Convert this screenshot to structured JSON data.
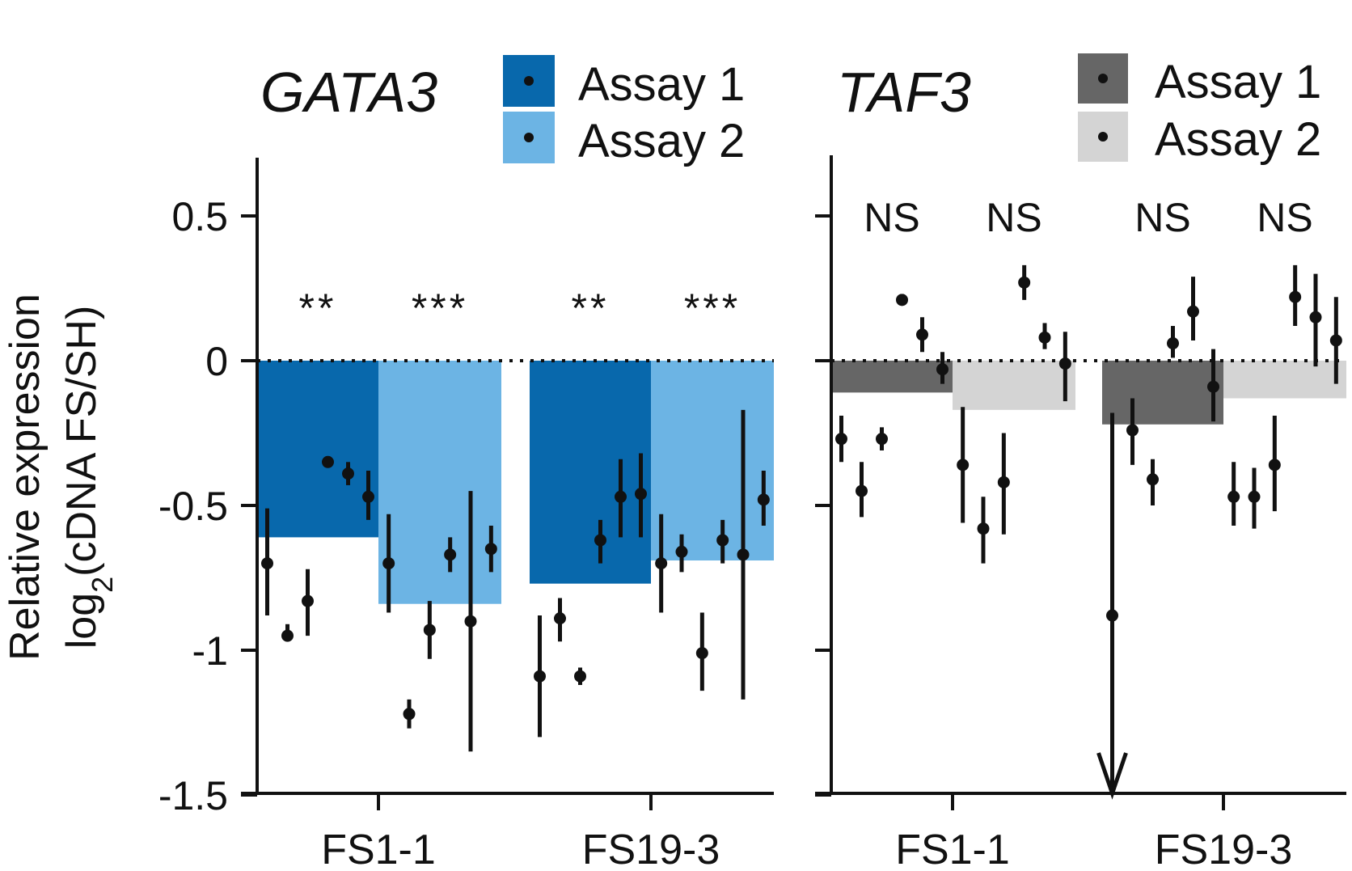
{
  "chart_data": [
    {
      "type": "bar",
      "title": "GATA3",
      "ylabel": "Relative expression",
      "ylabel_line2": "log2(cDNA FS/SH)",
      "ylim": [
        -1.5,
        0.7
      ],
      "yticks": [
        0.5,
        0,
        -0.5,
        -1,
        -1.5
      ],
      "ytick_labels": [
        "0.5",
        "0",
        "-0.5",
        "-1",
        "-1.5"
      ],
      "categories": [
        "FS1-1",
        "FS19-3"
      ],
      "legend": [
        {
          "name": "Assay 1",
          "color": "#0868ac"
        },
        {
          "name": "Assay 2",
          "color": "#6cb4e4"
        }
      ],
      "series": [
        {
          "name": "Assay 1",
          "color": "#0868ac",
          "values": [
            -0.61,
            -0.77
          ]
        },
        {
          "name": "Assay 2",
          "color": "#6cb4e4",
          "values": [
            -0.84,
            -0.69
          ]
        }
      ],
      "significance": [
        [
          "**",
          "***"
        ],
        [
          "**",
          "***"
        ]
      ],
      "points": [
        [
          [
            {
              "y": -0.7,
              "lo": -0.88,
              "hi": -0.51
            },
            {
              "y": -0.95,
              "lo": -0.97,
              "hi": -0.91
            },
            {
              "y": -0.83,
              "lo": -0.95,
              "hi": -0.72
            },
            {
              "y": -0.35,
              "lo": -0.36,
              "hi": -0.33
            },
            {
              "y": -0.39,
              "lo": -0.43,
              "hi": -0.35
            },
            {
              "y": -0.47,
              "lo": -0.55,
              "hi": -0.38
            }
          ],
          [
            {
              "y": -0.7,
              "lo": -0.87,
              "hi": -0.53
            },
            {
              "y": -1.22,
              "lo": -1.27,
              "hi": -1.17
            },
            {
              "y": -0.93,
              "lo": -1.03,
              "hi": -0.83
            },
            {
              "y": -0.67,
              "lo": -0.73,
              "hi": -0.61
            },
            {
              "y": -0.9,
              "lo": -1.35,
              "hi": -0.45
            },
            {
              "y": -0.65,
              "lo": -0.73,
              "hi": -0.57
            }
          ]
        ],
        [
          [
            {
              "y": -1.09,
              "lo": -1.3,
              "hi": -0.88
            },
            {
              "y": -0.89,
              "lo": -0.97,
              "hi": -0.82
            },
            {
              "y": -1.09,
              "lo": -1.12,
              "hi": -1.06
            },
            {
              "y": -0.62,
              "lo": -0.7,
              "hi": -0.55
            },
            {
              "y": -0.47,
              "lo": -0.61,
              "hi": -0.34
            },
            {
              "y": -0.46,
              "lo": -0.61,
              "hi": -0.32
            }
          ],
          [
            {
              "y": -0.7,
              "lo": -0.87,
              "hi": -0.53
            },
            {
              "y": -0.66,
              "lo": -0.73,
              "hi": -0.6
            },
            {
              "y": -1.01,
              "lo": -1.14,
              "hi": -0.87
            },
            {
              "y": -0.62,
              "lo": -0.7,
              "hi": -0.55
            },
            {
              "y": -0.67,
              "lo": -1.17,
              "hi": -0.17
            },
            {
              "y": -0.48,
              "lo": -0.57,
              "hi": -0.38
            }
          ]
        ]
      ]
    },
    {
      "type": "bar",
      "title": "TAF3",
      "ylim": [
        -1.5,
        0.7
      ],
      "yticks": [
        0.5,
        0,
        -0.5,
        -1,
        -1.5
      ],
      "categories": [
        "FS1-1",
        "FS19-3"
      ],
      "legend": [
        {
          "name": "Assay 1",
          "color": "#666666"
        },
        {
          "name": "Assay 2",
          "color": "#d4d4d4"
        }
      ],
      "series": [
        {
          "name": "Assay 1",
          "color": "#666666",
          "values": [
            -0.11,
            -0.22
          ]
        },
        {
          "name": "Assay 2",
          "color": "#d4d4d4",
          "values": [
            -0.17,
            -0.13
          ]
        }
      ],
      "significance": [
        [
          "NS",
          "NS"
        ],
        [
          "NS",
          "NS"
        ]
      ],
      "points": [
        [
          [
            {
              "y": -0.27,
              "lo": -0.35,
              "hi": -0.19
            },
            {
              "y": -0.45,
              "lo": -0.54,
              "hi": -0.35
            },
            {
              "y": -0.27,
              "lo": -0.31,
              "hi": -0.23
            },
            {
              "y": 0.21,
              "lo": 0.2,
              "hi": 0.23
            },
            {
              "y": 0.09,
              "lo": 0.03,
              "hi": 0.15
            },
            {
              "y": -0.03,
              "lo": -0.08,
              "hi": 0.03
            }
          ],
          [
            {
              "y": -0.36,
              "lo": -0.56,
              "hi": -0.16
            },
            {
              "y": -0.58,
              "lo": -0.7,
              "hi": -0.47
            },
            {
              "y": -0.42,
              "lo": -0.6,
              "hi": -0.25
            },
            {
              "y": 0.27,
              "lo": 0.21,
              "hi": 0.33
            },
            {
              "y": 0.08,
              "lo": 0.04,
              "hi": 0.13
            },
            {
              "y": -0.01,
              "lo": -0.14,
              "hi": 0.1
            }
          ]
        ],
        [
          [
            {
              "y": -0.88,
              "lo": -1.5,
              "hi": -0.18,
              "arrow": true
            },
            {
              "y": -0.24,
              "lo": -0.36,
              "hi": -0.13
            },
            {
              "y": -0.41,
              "lo": -0.5,
              "hi": -0.34
            },
            {
              "y": 0.06,
              "lo": 0.01,
              "hi": 0.12
            },
            {
              "y": 0.17,
              "lo": 0.07,
              "hi": 0.29
            },
            {
              "y": -0.09,
              "lo": -0.21,
              "hi": 0.04
            }
          ],
          [
            {
              "y": -0.47,
              "lo": -0.57,
              "hi": -0.35
            },
            {
              "y": -0.47,
              "lo": -0.58,
              "hi": -0.37
            },
            {
              "y": -0.36,
              "lo": -0.52,
              "hi": -0.19
            },
            {
              "y": 0.22,
              "lo": 0.12,
              "hi": 0.33
            },
            {
              "y": 0.15,
              "lo": -0.02,
              "hi": 0.3
            },
            {
              "y": 0.07,
              "lo": -0.08,
              "hi": 0.22
            }
          ]
        ]
      ]
    }
  ]
}
